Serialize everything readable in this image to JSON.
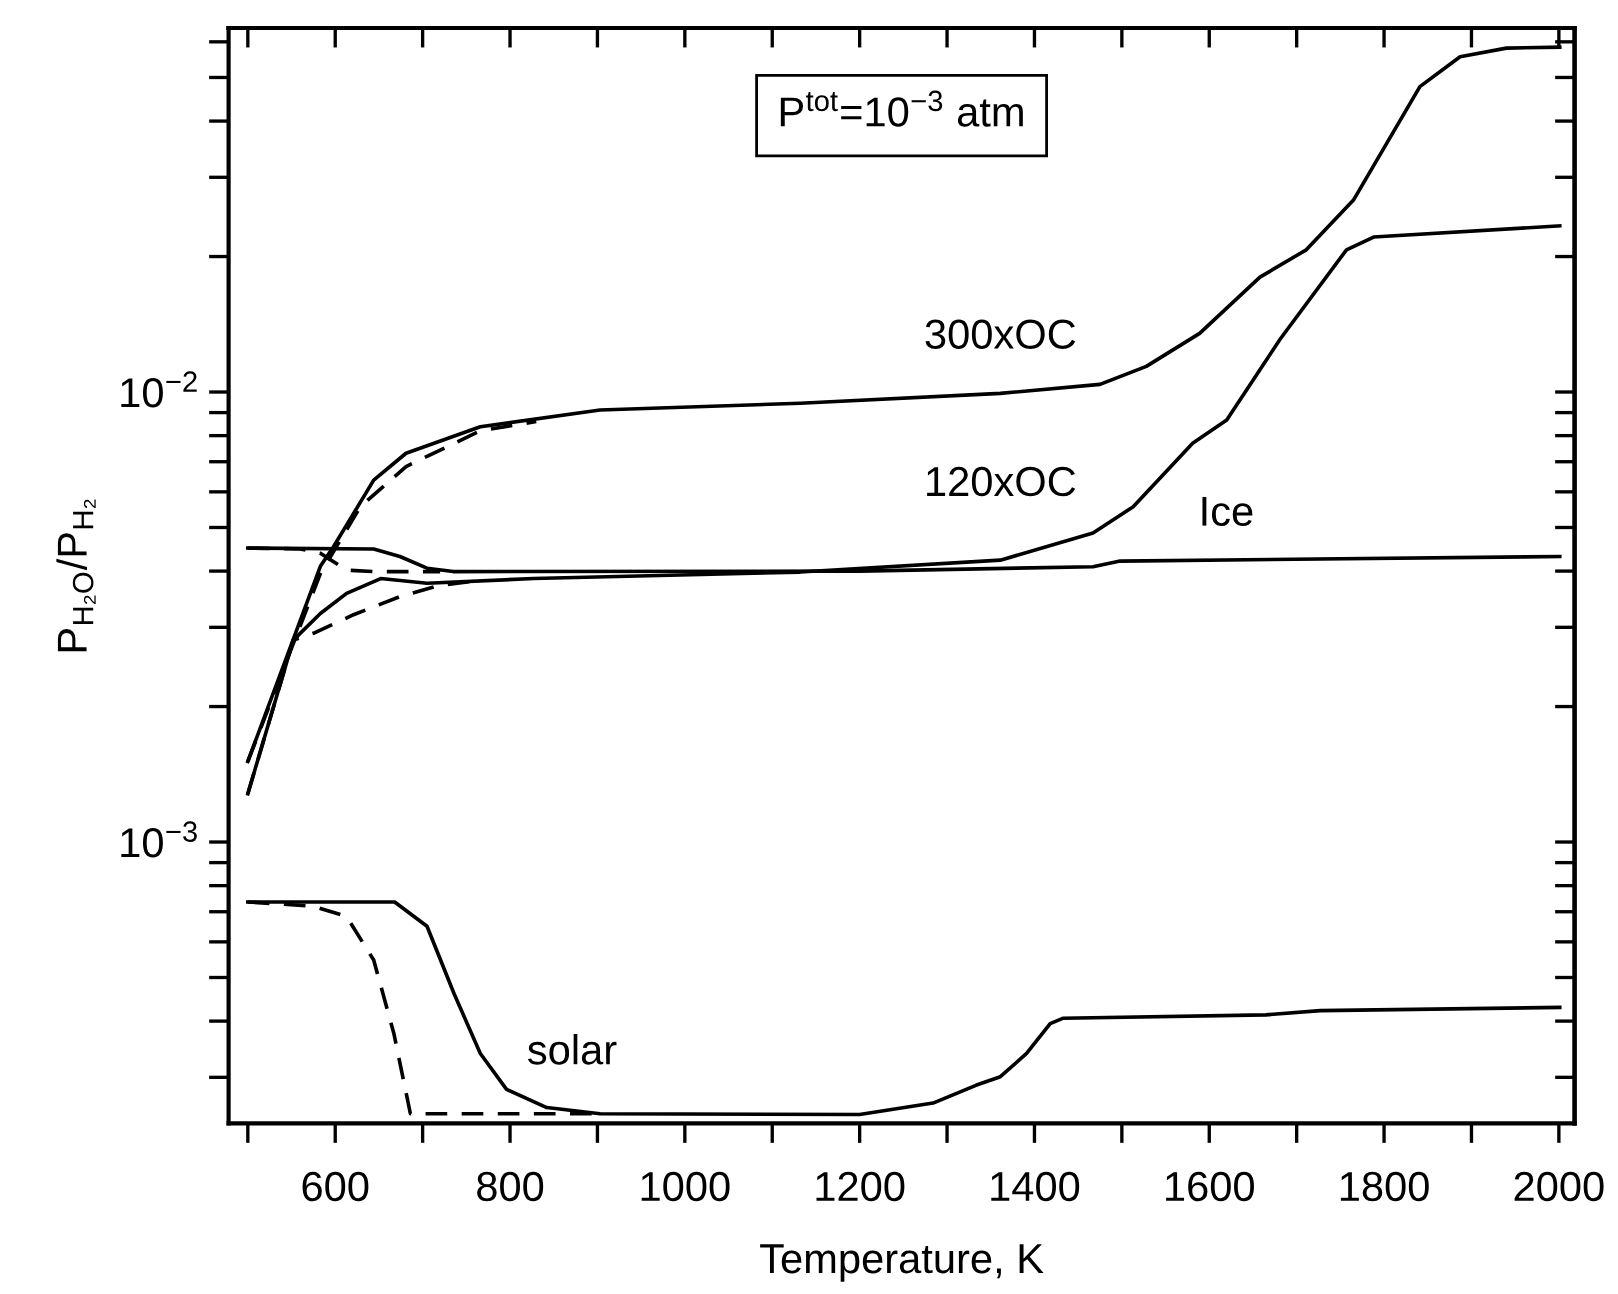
{
  "chart_data": {
    "type": "line",
    "xlabel": "Temperature, K",
    "ylabel": "P$_{H₂O}$/P$_{H₂}$",
    "log": "y",
    "xlim": [
      478,
      2018
    ],
    "ylim": [
      0.000237,
      0.0644
    ],
    "xticks": [
      {
        "value": 500,
        "label": null
      },
      600,
      {
        "value": 700,
        "label": null
      },
      800,
      {
        "value": 900,
        "label": null
      },
      1000,
      {
        "value": 1100,
        "label": null
      },
      1200,
      {
        "value": 1300,
        "label": null
      },
      1400,
      {
        "value": 1500,
        "label": null
      },
      1600,
      {
        "value": 1700,
        "label": null
      },
      1800,
      {
        "value": 1900,
        "label": null
      },
      2000
    ],
    "yticks": [
      {
        "value": 0.0003,
        "label": null
      },
      {
        "value": 0.0004,
        "label": null
      },
      {
        "value": 0.0005,
        "label": null
      },
      {
        "value": 0.0006,
        "label": null
      },
      {
        "value": 0.0007,
        "label": null
      },
      {
        "value": 0.0008,
        "label": null
      },
      {
        "value": 0.0009,
        "label": null
      },
      {
        "value": 0.001,
        "label": "10$^{−3}$"
      },
      {
        "value": 0.002,
        "label": null
      },
      {
        "value": 0.003,
        "label": null
      },
      {
        "value": 0.004,
        "label": null
      },
      {
        "value": 0.005,
        "label": null
      },
      {
        "value": 0.006,
        "label": null
      },
      {
        "value": 0.007,
        "label": null
      },
      {
        "value": 0.008,
        "label": null
      },
      {
        "value": 0.009,
        "label": null
      },
      {
        "value": 0.01,
        "label": "10$^{−2}$"
      },
      {
        "value": 0.02,
        "label": null
      },
      {
        "value": 0.03,
        "label": null
      },
      {
        "value": 0.04,
        "label": null
      },
      {
        "value": 0.05,
        "label": null
      },
      {
        "value": 0.06,
        "label": null
      }
    ],
    "series": [
      {
        "name": "300xOC",
        "color": "#000000",
        "line_style": "solid",
        "x": [
          500,
          583,
          598,
          644,
          681,
          766,
          903,
          1132,
          1361,
          1475,
          1528,
          1589,
          1658,
          1711,
          1765,
          1841,
          1887,
          1940,
          2001
        ],
        "values": [
          0.00151,
          0.0041,
          0.00453,
          0.00637,
          0.00731,
          0.00837,
          0.00912,
          0.00944,
          0.00993,
          0.0104,
          0.0114,
          0.0135,
          0.018,
          0.0207,
          0.0267,
          0.0477,
          0.0556,
          0.0581,
          0.0584
        ]
      },
      {
        "color": "#000000",
        "line_style": "dashed",
        "x": [
          500,
          583,
          629,
          681,
          766,
          830
        ],
        "values": [
          0.00151,
          0.00395,
          0.00557,
          0.00683,
          0.0082,
          0.0086
        ]
      },
      {
        "name": "120xOC",
        "color": "#000000",
        "line_style": "solid",
        "x": [
          500,
          552,
          583,
          613,
          652,
          705,
          827,
          1132,
          1361,
          1467,
          1513,
          1581,
          1620,
          1681,
          1757,
          1788,
          2001
        ],
        "values": [
          0.00128,
          0.00281,
          0.00322,
          0.00357,
          0.00385,
          0.00376,
          0.00385,
          0.00398,
          0.00423,
          0.00486,
          0.00556,
          0.00769,
          0.00867,
          0.0131,
          0.0207,
          0.0221,
          0.0234
        ]
      },
      {
        "color": "#000000",
        "line_style": "dashed",
        "x": [
          500,
          552,
          575,
          621,
          674,
          720,
          760
        ],
        "values": [
          0.00128,
          0.00281,
          0.00291,
          0.0032,
          0.00351,
          0.00372,
          0.0038
        ]
      },
      {
        "name": "Ice",
        "color": "#000000",
        "line_style": "solid",
        "x": [
          500,
          644,
          674,
          705,
          735,
          1200,
          1467,
          1498,
          2001
        ],
        "values": [
          0.0045,
          0.00448,
          0.00431,
          0.00406,
          0.00399,
          0.004,
          0.00409,
          0.00421,
          0.00431
        ]
      },
      {
        "color": "#000000",
        "line_style": "dashed",
        "x": [
          500,
          560,
          583,
          613,
          644,
          720
        ],
        "values": [
          0.0045,
          0.00448,
          0.00438,
          0.00402,
          0.00399,
          0.00399
        ]
      },
      {
        "name": "solar",
        "color": "#000000",
        "line_style": "solid",
        "x": [
          500,
          668,
          705,
          736,
          766,
          796,
          842,
          903,
          1200,
          1284,
          1333,
          1361,
          1391,
          1418,
          1433,
          1665,
          1727,
          2001
        ],
        "values": [
          0.000736,
          0.000736,
          0.00065,
          0.00046,
          0.000339,
          0.000282,
          0.000257,
          0.000249,
          0.000248,
          0.000263,
          0.000288,
          0.000301,
          0.000339,
          0.000395,
          0.000406,
          0.000413,
          0.000422,
          0.000429
        ]
      },
      {
        "color": "#000000",
        "line_style": "dashed",
        "x": [
          500,
          575,
          613,
          644,
          667,
          686,
          900
        ],
        "values": [
          0.000736,
          0.00072,
          0.000683,
          0.000547,
          0.000376,
          0.000249,
          0.000249
        ]
      }
    ],
    "annotations": [
      "P$^{tot}$=10$^{−3}$ atm"
    ]
  }
}
